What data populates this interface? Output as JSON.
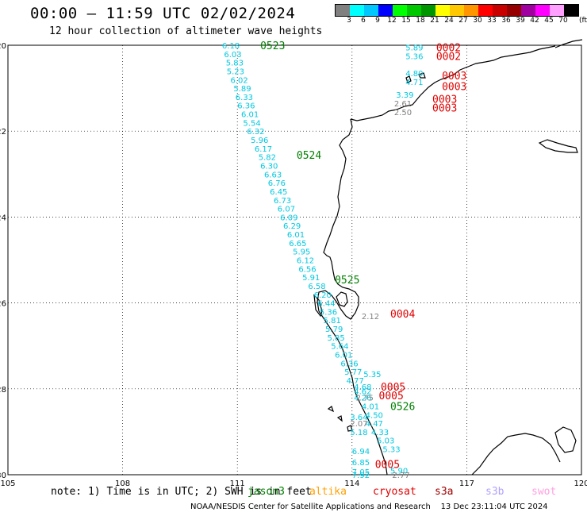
{
  "title": "00:00 – 11:59 UTC 02/02/2024",
  "subtitle": "12 hour collection of altimeter wave heights",
  "colorbar": {
    "labels": [
      "3",
      "6",
      "9",
      "12",
      "15",
      "18",
      "21",
      "24",
      "27",
      "30",
      "33",
      "36",
      "39",
      "42",
      "45",
      "70"
    ],
    "unit": "(ft)",
    "colors": [
      "#808080",
      "#00ffff",
      "#00c8ff",
      "#0000ff",
      "#00ff00",
      "#00c800",
      "#009600",
      "#ffff00",
      "#ffc800",
      "#ff9600",
      "#ff0000",
      "#c80000",
      "#960000",
      "#a000a0",
      "#ff00ff",
      "#ffa0ff",
      "#000000"
    ]
  },
  "map": {
    "lon_ticks": [
      "105",
      "108",
      "111",
      "114",
      "117",
      "120"
    ],
    "lat_ticks": [
      "-20",
      "-22",
      "-24",
      "-26",
      "-28",
      "-30"
    ]
  },
  "track_labels": [
    {
      "lon": 111.6,
      "lat": -20.0,
      "text": "0523",
      "color": "#008000"
    },
    {
      "lon": 112.55,
      "lat": -22.55,
      "text": "0524",
      "color": "#008000"
    },
    {
      "lon": 113.55,
      "lat": -25.45,
      "text": "0525",
      "color": "#008000"
    },
    {
      "lon": 115.0,
      "lat": -28.4,
      "text": "0526",
      "color": "#008000"
    },
    {
      "lon": 116.2,
      "lat": -20.05,
      "text": "0002",
      "color": "#e00000"
    },
    {
      "lon": 116.2,
      "lat": -20.25,
      "text": "0002",
      "color": "#e00000"
    },
    {
      "lon": 116.35,
      "lat": -20.7,
      "text": "0003",
      "color": "#e00000"
    },
    {
      "lon": 116.35,
      "lat": -20.95,
      "text": "0003",
      "color": "#e00000"
    },
    {
      "lon": 116.1,
      "lat": -21.25,
      "text": "0003",
      "color": "#e00000"
    },
    {
      "lon": 116.1,
      "lat": -21.45,
      "text": "0003",
      "color": "#e00000"
    },
    {
      "lon": 115.0,
      "lat": -26.25,
      "text": "0004",
      "color": "#e00000"
    },
    {
      "lon": 114.75,
      "lat": -27.95,
      "text": "0005",
      "color": "#e00000"
    },
    {
      "lon": 114.7,
      "lat": -28.15,
      "text": "0005",
      "color": "#e00000"
    },
    {
      "lon": 114.6,
      "lat": -29.75,
      "text": "0005",
      "color": "#e00000"
    }
  ],
  "wave_heights": [
    {
      "lon": 110.6,
      "lat": -20.0,
      "text": "6.18",
      "color": "#00c8e0"
    },
    {
      "lon": 110.65,
      "lat": -20.2,
      "text": "6.03",
      "color": "#00c8e0"
    },
    {
      "lon": 110.7,
      "lat": -20.4,
      "text": "5.83",
      "color": "#00c8e0"
    },
    {
      "lon": 110.72,
      "lat": -20.6,
      "text": "5.23",
      "color": "#00c8e0"
    },
    {
      "lon": 110.82,
      "lat": -20.8,
      "text": "6.02",
      "color": "#00c8e0"
    },
    {
      "lon": 110.9,
      "lat": -21.0,
      "text": "5.89",
      "color": "#00c8e0"
    },
    {
      "lon": 110.95,
      "lat": -21.2,
      "text": "6.33",
      "color": "#00c8e0"
    },
    {
      "lon": 111.0,
      "lat": -21.4,
      "text": "6.36",
      "color": "#00c8e0"
    },
    {
      "lon": 111.1,
      "lat": -21.6,
      "text": "6.01",
      "color": "#00c8e0"
    },
    {
      "lon": 111.15,
      "lat": -21.8,
      "text": "5.54",
      "color": "#00c8e0"
    },
    {
      "lon": 111.25,
      "lat": -22.0,
      "text": "6.32",
      "color": "#00c8e0"
    },
    {
      "lon": 111.35,
      "lat": -22.2,
      "text": "5.96",
      "color": "#00c8e0"
    },
    {
      "lon": 111.45,
      "lat": -22.4,
      "text": "6.17",
      "color": "#00c8e0"
    },
    {
      "lon": 111.55,
      "lat": -22.6,
      "text": "5.82",
      "color": "#00c8e0"
    },
    {
      "lon": 111.6,
      "lat": -22.8,
      "text": "6.30",
      "color": "#00c8e0"
    },
    {
      "lon": 111.7,
      "lat": -23.0,
      "text": "6.63",
      "color": "#00c8e0"
    },
    {
      "lon": 111.8,
      "lat": -23.2,
      "text": "6.76",
      "color": "#00c8e0"
    },
    {
      "lon": 111.85,
      "lat": -23.4,
      "text": "6.45",
      "color": "#00c8e0"
    },
    {
      "lon": 111.95,
      "lat": -23.6,
      "text": "6.73",
      "color": "#00c8e0"
    },
    {
      "lon": 112.05,
      "lat": -23.8,
      "text": "6.07",
      "color": "#00c8e0"
    },
    {
      "lon": 112.12,
      "lat": -24.0,
      "text": "6.09",
      "color": "#00c8e0"
    },
    {
      "lon": 112.2,
      "lat": -24.2,
      "text": "6.29",
      "color": "#00c8e0"
    },
    {
      "lon": 112.3,
      "lat": -24.4,
      "text": "6.01",
      "color": "#00c8e0"
    },
    {
      "lon": 112.35,
      "lat": -24.6,
      "text": "6.65",
      "color": "#00c8e0"
    },
    {
      "lon": 112.45,
      "lat": -24.8,
      "text": "5.95",
      "color": "#00c8e0"
    },
    {
      "lon": 112.55,
      "lat": -25.0,
      "text": "6.12",
      "color": "#00c8e0"
    },
    {
      "lon": 112.6,
      "lat": -25.2,
      "text": "6.56",
      "color": "#00c8e0"
    },
    {
      "lon": 112.7,
      "lat": -25.4,
      "text": "5.91",
      "color": "#00c8e0"
    },
    {
      "lon": 112.85,
      "lat": -25.6,
      "text": "6.58",
      "color": "#00c8e0"
    },
    {
      "lon": 113.0,
      "lat": -25.8,
      "text": "6.20",
      "color": "#00c8e0"
    },
    {
      "lon": 113.1,
      "lat": -26.0,
      "text": "6.44",
      "color": "#00c8e0"
    },
    {
      "lon": 113.15,
      "lat": -26.2,
      "text": "5.36",
      "color": "#00c8e0"
    },
    {
      "lon": 113.25,
      "lat": -26.4,
      "text": "5.81",
      "color": "#00c8e0"
    },
    {
      "lon": 113.3,
      "lat": -26.6,
      "text": "5.79",
      "color": "#00c8e0"
    },
    {
      "lon": 113.35,
      "lat": -26.8,
      "text": "5.85",
      "color": "#00c8e0"
    },
    {
      "lon": 113.45,
      "lat": -27.0,
      "text": "5.64",
      "color": "#00c8e0"
    },
    {
      "lon": 113.55,
      "lat": -27.2,
      "text": "6.01",
      "color": "#00c8e0"
    },
    {
      "lon": 113.7,
      "lat": -27.4,
      "text": "6.36",
      "color": "#00c8e0"
    },
    {
      "lon": 113.8,
      "lat": -27.6,
      "text": "5.77",
      "color": "#00c8e0"
    },
    {
      "lon": 114.3,
      "lat": -27.65,
      "text": "5.35",
      "color": "#00c8e0"
    },
    {
      "lon": 113.85,
      "lat": -27.8,
      "text": "4.77",
      "color": "#00c8e0"
    },
    {
      "lon": 114.05,
      "lat": -27.95,
      "text": "4.68",
      "color": "#00c8e0"
    },
    {
      "lon": 114.05,
      "lat": -28.05,
      "text": "4.62",
      "color": "#00c8e0"
    },
    {
      "lon": 114.05,
      "lat": -28.2,
      "text": "4.26",
      "color": "#00c8e0"
    },
    {
      "lon": 114.1,
      "lat": -28.2,
      "text": "2.75",
      "color": "#808080"
    },
    {
      "lon": 114.25,
      "lat": -28.4,
      "text": "4.01",
      "color": "#00c8e0"
    },
    {
      "lon": 114.35,
      "lat": -28.6,
      "text": "4.50",
      "color": "#00c8e0"
    },
    {
      "lon": 113.95,
      "lat": -28.65,
      "text": "3.64",
      "color": "#00c8e0"
    },
    {
      "lon": 114.35,
      "lat": -28.8,
      "text": "4.47",
      "color": "#00c8e0"
    },
    {
      "lon": 113.95,
      "lat": -28.8,
      "text": "2.07",
      "color": "#808080"
    },
    {
      "lon": 113.95,
      "lat": -29.0,
      "text": "5.18",
      "color": "#00c8e0"
    },
    {
      "lon": 114.5,
      "lat": -29.0,
      "text": "4.33",
      "color": "#00c8e0"
    },
    {
      "lon": 114.65,
      "lat": -29.2,
      "text": "5.03",
      "color": "#00c8e0"
    },
    {
      "lon": 114.0,
      "lat": -29.45,
      "text": "6.94",
      "color": "#00c8e0"
    },
    {
      "lon": 114.8,
      "lat": -29.4,
      "text": "5.33",
      "color": "#00c8e0"
    },
    {
      "lon": 114.0,
      "lat": -29.7,
      "text": "6.85",
      "color": "#00c8e0"
    },
    {
      "lon": 115.0,
      "lat": -29.9,
      "text": "5.90",
      "color": "#00c8e0"
    },
    {
      "lon": 114.0,
      "lat": -29.93,
      "text": "7.05",
      "color": "#00c8e0"
    },
    {
      "lon": 114.0,
      "lat": -30.0,
      "text": "7.92",
      "color": "#00c8e0"
    },
    {
      "lon": 115.05,
      "lat": -30.0,
      "text": "2.77",
      "color": "#808080"
    },
    {
      "lon": 115.4,
      "lat": -20.05,
      "text": "5.89",
      "color": "#00c8e0"
    },
    {
      "lon": 115.4,
      "lat": -20.25,
      "text": "5.36",
      "color": "#00c8e0"
    },
    {
      "lon": 115.4,
      "lat": -20.65,
      "text": "4.80",
      "color": "#00c8e0"
    },
    {
      "lon": 115.4,
      "lat": -20.85,
      "text": "4.71",
      "color": "#00c8e0"
    },
    {
      "lon": 115.15,
      "lat": -21.15,
      "text": "3.39",
      "color": "#00c8e0"
    },
    {
      "lon": 115.1,
      "lat": -21.35,
      "text": "2.61",
      "color": "#808080"
    },
    {
      "lon": 115.1,
      "lat": -21.55,
      "text": "2.50",
      "color": "#808080"
    },
    {
      "lon": 114.25,
      "lat": -26.3,
      "text": "2.12",
      "color": "#808080"
    }
  ],
  "note": "note: 1) Time is in UTC; 2) SWH is in feet",
  "legend": [
    {
      "text": "jason3",
      "color": "#008000"
    },
    {
      "text": "altika",
      "color": "#ffa000"
    },
    {
      "text": "cryosat",
      "color": "#e00000"
    },
    {
      "text": "s3a",
      "color": "#a00000"
    },
    {
      "text": "s3b",
      "color": "#b0a0ff"
    },
    {
      "text": "swot",
      "color": "#ffa0e0"
    }
  ],
  "credit": "NOAA/NESDIS Center for Satellite Applications and Research    13 Dec 23:11:04 UTC 2024"
}
